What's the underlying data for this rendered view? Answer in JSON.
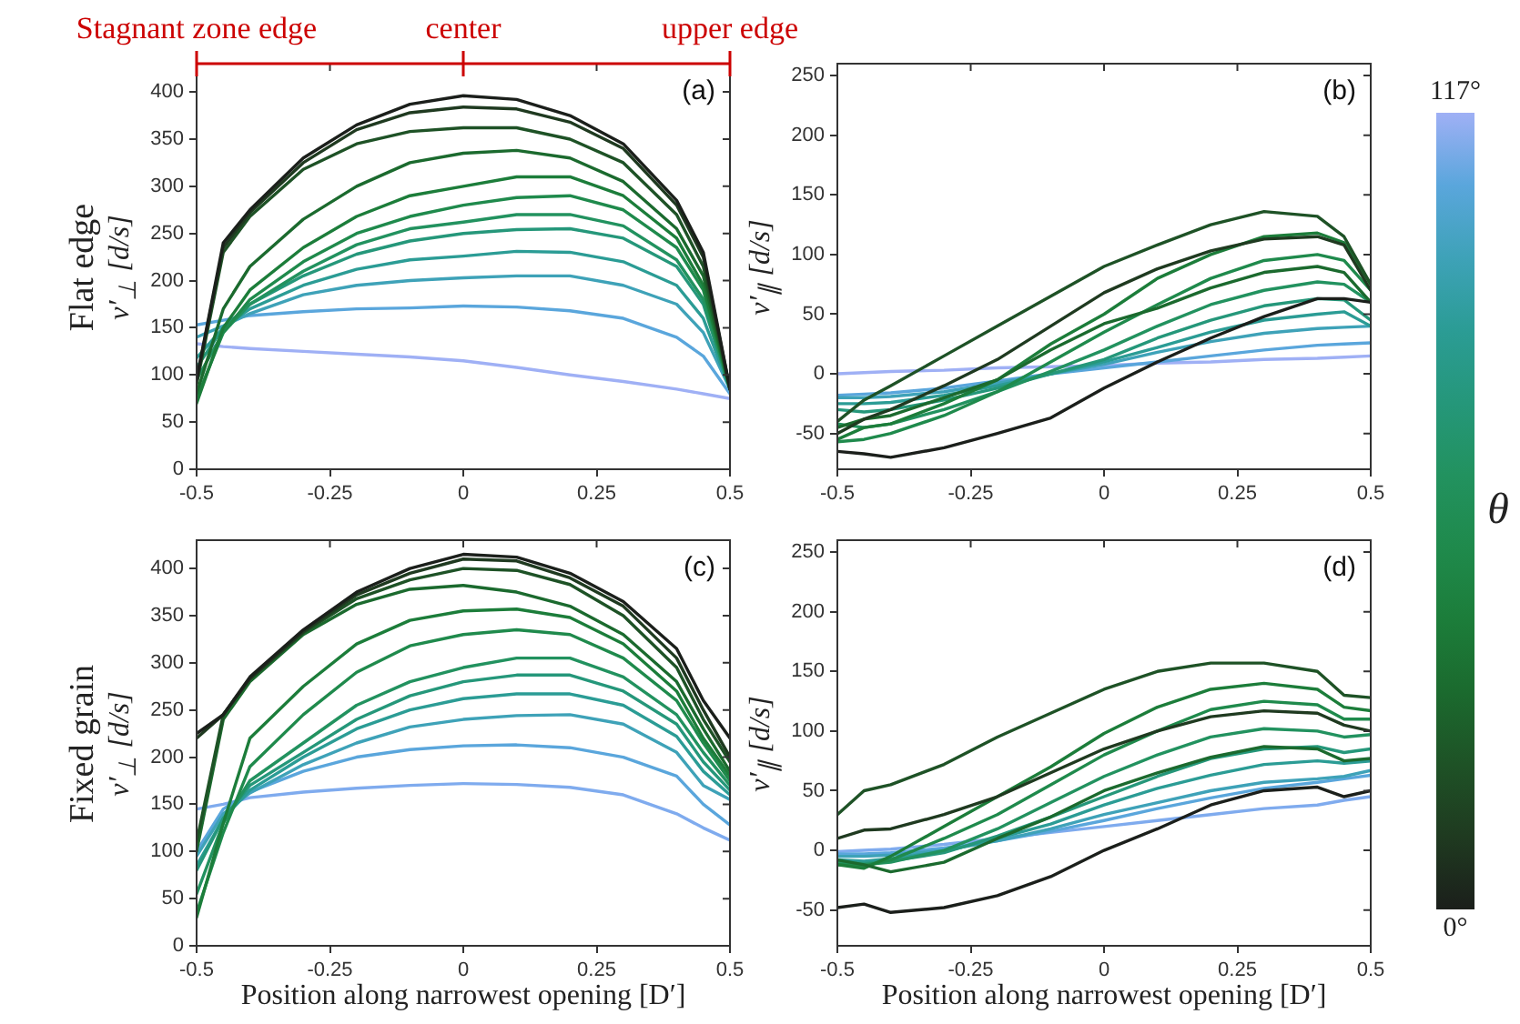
{
  "chart_data": [
    {
      "type": "line",
      "ylabel": "v′$_{⊥}$ [d/s]",
      "x": [
        -0.5,
        -0.45,
        -0.4,
        -0.3,
        -0.2,
        -0.1,
        0,
        0.1,
        0.2,
        0.3,
        0.4,
        0.45,
        0.5
      ],
      "xlim": [
        -0.5,
        0.5
      ],
      "xticks": [
        -0.5,
        -0.25,
        0,
        0.25,
        0.5
      ],
      "ylim": [
        0,
        430
      ],
      "yticks": [
        0,
        50,
        100,
        150,
        200,
        250,
        300,
        350,
        400
      ],
      "annotations": [
        "(a)",
        "Flat edge",
        {
          "text": "Stagnant zone edge",
          "x": -0.5
        },
        {
          "text": "center",
          "x": 0
        },
        {
          "text": "upper edge",
          "x": 0.5
        }
      ],
      "series": [
        {
          "color": "#1b1f1b",
          "values": [
            95,
            240,
            275,
            330,
            365,
            387,
            396,
            392,
            375,
            345,
            285,
            230,
            85
          ]
        },
        {
          "color": "#1f3a20",
          "values": [
            95,
            235,
            272,
            325,
            360,
            378,
            384,
            382,
            368,
            340,
            280,
            225,
            85
          ]
        },
        {
          "color": "#1e5226",
          "values": [
            90,
            230,
            268,
            318,
            345,
            358,
            362,
            362,
            350,
            325,
            270,
            215,
            85
          ]
        },
        {
          "color": "#1b6a2e",
          "values": [
            80,
            170,
            215,
            265,
            300,
            325,
            335,
            338,
            330,
            305,
            255,
            205,
            85
          ]
        },
        {
          "color": "#1c7d3a",
          "values": [
            70,
            150,
            190,
            235,
            268,
            290,
            300,
            310,
            310,
            290,
            245,
            195,
            85
          ]
        },
        {
          "color": "#1f8a4c",
          "values": [
            75,
            145,
            180,
            220,
            250,
            268,
            280,
            288,
            290,
            275,
            235,
            190,
            85
          ]
        },
        {
          "color": "#22925f",
          "values": [
            95,
            145,
            175,
            210,
            238,
            255,
            262,
            270,
            270,
            258,
            222,
            180,
            85
          ]
        },
        {
          "color": "#25977a",
          "values": [
            108,
            150,
            175,
            205,
            228,
            242,
            250,
            254,
            255,
            245,
            215,
            175,
            85
          ]
        },
        {
          "color": "#2b9c95",
          "values": [
            118,
            150,
            170,
            195,
            212,
            222,
            226,
            231,
            230,
            220,
            195,
            160,
            85
          ]
        },
        {
          "color": "#3ea2b8",
          "values": [
            140,
            152,
            165,
            185,
            195,
            200,
            203,
            205,
            205,
            195,
            175,
            145,
            85
          ]
        },
        {
          "color": "#5aa6dc",
          "values": [
            153,
            158,
            163,
            167,
            170,
            171,
            173,
            172,
            168,
            160,
            140,
            120,
            80
          ]
        },
        {
          "color": "#9fb0f5",
          "values": [
            133,
            130,
            128,
            125,
            122,
            119,
            115,
            108,
            100,
            93,
            85,
            80,
            75
          ]
        }
      ]
    },
    {
      "type": "line",
      "ylabel": "v′$_{∥}$ [d/s]",
      "annotations": [
        "(b)",
        "117°",
        "0°"
      ],
      "x": [
        -0.5,
        -0.45,
        -0.4,
        -0.3,
        -0.2,
        -0.1,
        0,
        0.1,
        0.2,
        0.3,
        0.4,
        0.45,
        0.5
      ],
      "xlim": [
        -0.5,
        0.5
      ],
      "xticks": [
        -0.5,
        -0.25,
        0,
        0.25,
        0.5
      ],
      "ylim": [
        -80,
        260
      ],
      "yticks": [
        -50,
        0,
        50,
        100,
        150,
        200,
        250
      ],
      "clabel": "θ",
      "series": [
        {
          "color": "#1b1f1b",
          "values": [
            -65,
            -67,
            -70,
            -62,
            -50,
            -37,
            -12,
            10,
            30,
            48,
            63,
            63,
            60
          ]
        },
        {
          "color": "#1f3a20",
          "values": [
            -50,
            -38,
            -30,
            -10,
            12,
            40,
            68,
            88,
            103,
            113,
            115,
            108,
            70
          ]
        },
        {
          "color": "#1e5226",
          "values": [
            -40,
            -22,
            -10,
            15,
            40,
            65,
            90,
            108,
            125,
            136,
            132,
            115,
            75
          ]
        },
        {
          "color": "#1b6a2e",
          "values": [
            -45,
            -38,
            -35,
            -20,
            -5,
            20,
            42,
            55,
            72,
            85,
            90,
            85,
            60
          ]
        },
        {
          "color": "#1c7d3a",
          "values": [
            -55,
            -45,
            -42,
            -25,
            -5,
            25,
            50,
            80,
            100,
            115,
            118,
            110,
            75
          ]
        },
        {
          "color": "#1f8a4c",
          "values": [
            -57,
            -55,
            -50,
            -35,
            -15,
            10,
            35,
            58,
            80,
            95,
            100,
            95,
            70
          ]
        },
        {
          "color": "#22925f",
          "values": [
            -42,
            -45,
            -42,
            -30,
            -15,
            2,
            20,
            40,
            58,
            70,
            77,
            75,
            60
          ]
        },
        {
          "color": "#25977a",
          "values": [
            -30,
            -32,
            -30,
            -22,
            -12,
            0,
            12,
            30,
            45,
            57,
            63,
            62,
            45
          ]
        },
        {
          "color": "#2b9c95",
          "values": [
            -25,
            -25,
            -24,
            -18,
            -10,
            0,
            10,
            22,
            35,
            45,
            50,
            52,
            40
          ]
        },
        {
          "color": "#3ea2b8",
          "values": [
            -20,
            -20,
            -19,
            -15,
            -8,
            0,
            8,
            18,
            27,
            34,
            38,
            39,
            40
          ]
        },
        {
          "color": "#5aa6dc",
          "values": [
            -18,
            -17,
            -16,
            -12,
            -6,
            0,
            5,
            10,
            15,
            20,
            24,
            25,
            26
          ]
        },
        {
          "color": "#9fb0f5",
          "values": [
            0,
            1,
            2,
            3,
            5,
            6,
            7,
            9,
            10,
            12,
            13,
            14,
            15
          ]
        }
      ]
    },
    {
      "type": "line",
      "ylabel": "v′$_{⊥}$ [d/s]",
      "xlabel": "Position along narrowest opening [D′]",
      "annotations": [
        "(c)",
        "Fixed grain"
      ],
      "x": [
        -0.5,
        -0.45,
        -0.4,
        -0.3,
        -0.2,
        -0.1,
        0,
        0.1,
        0.2,
        0.3,
        0.4,
        0.45,
        0.5
      ],
      "xlim": [
        -0.5,
        0.5
      ],
      "xticks": [
        -0.5,
        -0.25,
        0,
        0.25,
        0.5
      ],
      "ylim": [
        0,
        430
      ],
      "yticks": [
        0,
        50,
        100,
        150,
        200,
        250,
        300,
        350,
        400
      ],
      "series": [
        {
          "color": "#1b1f1b",
          "values": [
            225,
            245,
            285,
            335,
            375,
            400,
            415,
            412,
            395,
            365,
            315,
            260,
            220
          ]
        },
        {
          "color": "#1f3a20",
          "values": [
            220,
            245,
            283,
            333,
            372,
            395,
            410,
            408,
            390,
            360,
            305,
            250,
            200
          ]
        },
        {
          "color": "#1e5226",
          "values": [
            110,
            245,
            283,
            332,
            368,
            388,
            400,
            398,
            383,
            350,
            295,
            240,
            195
          ]
        },
        {
          "color": "#1b6a2e",
          "values": [
            100,
            240,
            280,
            330,
            362,
            378,
            382,
            375,
            360,
            330,
            280,
            230,
            185
          ]
        },
        {
          "color": "#1c7d3a",
          "values": [
            30,
            130,
            220,
            275,
            320,
            345,
            355,
            357,
            348,
            320,
            270,
            220,
            180
          ]
        },
        {
          "color": "#1f8a4c",
          "values": [
            35,
            120,
            190,
            245,
            290,
            318,
            330,
            335,
            330,
            305,
            260,
            215,
            175
          ]
        },
        {
          "color": "#22925f",
          "values": [
            55,
            130,
            175,
            215,
            255,
            280,
            295,
            305,
            305,
            285,
            245,
            205,
            170
          ]
        },
        {
          "color": "#25977a",
          "values": [
            80,
            135,
            170,
            205,
            240,
            265,
            280,
            287,
            287,
            270,
            235,
            195,
            165
          ]
        },
        {
          "color": "#2b9c95",
          "values": [
            85,
            135,
            165,
            200,
            230,
            250,
            262,
            267,
            267,
            255,
            222,
            185,
            160
          ]
        },
        {
          "color": "#3ea2b8",
          "values": [
            95,
            140,
            162,
            192,
            215,
            232,
            240,
            244,
            245,
            235,
            205,
            170,
            155
          ]
        },
        {
          "color": "#5aa6dc",
          "values": [
            100,
            145,
            163,
            185,
            200,
            208,
            212,
            213,
            210,
            200,
            180,
            150,
            128
          ]
        },
        {
          "color": "#7fabee",
          "values": [
            145,
            150,
            157,
            163,
            167,
            170,
            172,
            171,
            168,
            160,
            140,
            125,
            112
          ]
        }
      ]
    },
    {
      "type": "line",
      "ylabel": "v′$_{∥}$ [d/s]",
      "xlabel": "Position along narrowest opening [D′]",
      "annotations": [
        "(d)"
      ],
      "x": [
        -0.5,
        -0.45,
        -0.4,
        -0.3,
        -0.2,
        -0.1,
        0,
        0.1,
        0.2,
        0.3,
        0.4,
        0.45,
        0.5
      ],
      "xlim": [
        -0.5,
        0.5
      ],
      "xticks": [
        -0.5,
        -0.25,
        0,
        0.25,
        0.5
      ],
      "ylim": [
        -80,
        260
      ],
      "yticks": [
        -50,
        0,
        50,
        100,
        150,
        200,
        250
      ],
      "series": [
        {
          "color": "#1b1f1b",
          "values": [
            -48,
            -45,
            -52,
            -48,
            -38,
            -22,
            0,
            18,
            38,
            50,
            53,
            45,
            50
          ]
        },
        {
          "color": "#1f3a20",
          "values": [
            10,
            17,
            18,
            30,
            45,
            65,
            85,
            100,
            112,
            117,
            115,
            105,
            100
          ]
        },
        {
          "color": "#1e5226",
          "values": [
            30,
            50,
            55,
            72,
            95,
            115,
            135,
            150,
            157,
            157,
            150,
            130,
            128
          ]
        },
        {
          "color": "#1b6a2e",
          "values": [
            -8,
            -12,
            -18,
            -10,
            10,
            28,
            50,
            65,
            78,
            87,
            85,
            75,
            77
          ]
        },
        {
          "color": "#1c7d3a",
          "values": [
            -12,
            -15,
            -5,
            20,
            45,
            70,
            98,
            120,
            135,
            140,
            135,
            120,
            117
          ]
        },
        {
          "color": "#1f8a4c",
          "values": [
            -12,
            -13,
            -8,
            10,
            30,
            55,
            80,
            100,
            118,
            125,
            122,
            110,
            110
          ]
        },
        {
          "color": "#22925f",
          "values": [
            -10,
            -12,
            -10,
            0,
            18,
            40,
            62,
            80,
            95,
            102,
            100,
            95,
            97
          ]
        },
        {
          "color": "#25977a",
          "values": [
            -10,
            -11,
            -9,
            -2,
            12,
            28,
            45,
            62,
            77,
            85,
            87,
            82,
            85
          ]
        },
        {
          "color": "#2b9c95",
          "values": [
            -8,
            -9,
            -7,
            -1,
            10,
            22,
            38,
            52,
            63,
            72,
            75,
            73,
            75
          ]
        },
        {
          "color": "#3ea2b8",
          "values": [
            -5,
            -5,
            -4,
            0,
            8,
            18,
            30,
            40,
            50,
            57,
            60,
            62,
            67
          ]
        },
        {
          "color": "#5aa6dc",
          "values": [
            -3,
            -3,
            -2,
            2,
            8,
            16,
            25,
            35,
            44,
            52,
            57,
            60,
            63
          ]
        },
        {
          "color": "#7fabee",
          "values": [
            -1,
            0,
            1,
            5,
            10,
            15,
            20,
            25,
            30,
            35,
            38,
            42,
            45
          ]
        }
      ]
    }
  ]
}
